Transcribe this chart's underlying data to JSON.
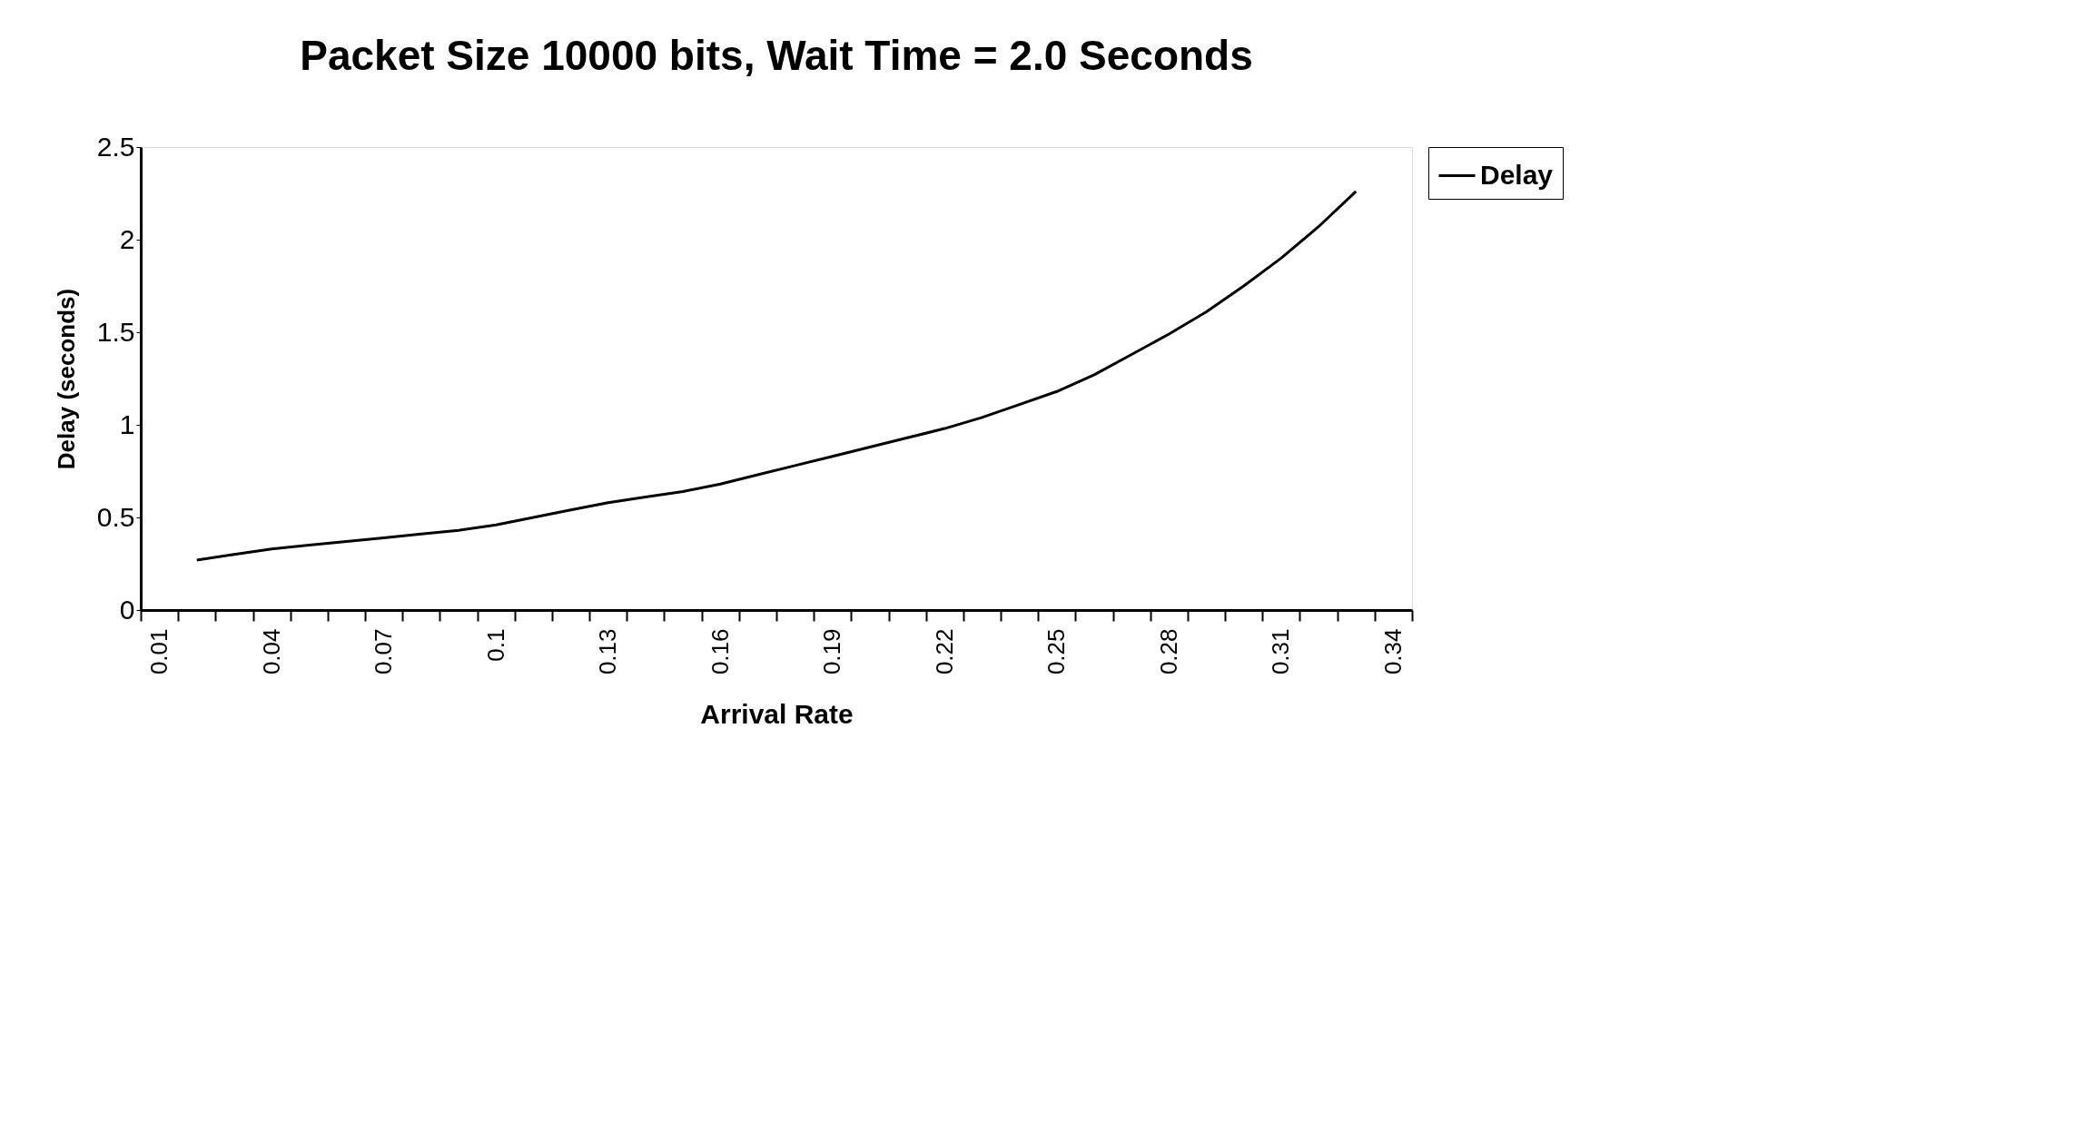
{
  "chart_data": {
    "type": "line",
    "title": "Packet Size 10000 bits, Wait Time = 2.0 Seconds",
    "xlabel": "Arrival Rate",
    "ylabel": "Delay (seconds)",
    "categories": [
      "0.01",
      null,
      null,
      "0.04",
      null,
      null,
      "0.07",
      null,
      null,
      "0.1",
      null,
      null,
      "0.13",
      null,
      null,
      "0.16",
      null,
      null,
      "0.19",
      null,
      null,
      "0.22",
      null,
      null,
      "0.25",
      null,
      null,
      "0.28",
      null,
      null,
      "0.31",
      null,
      null,
      "0.34"
    ],
    "series": [
      {
        "name": "Delay",
        "color": "#000000",
        "values": [
          null,
          0.27,
          0.3,
          0.33,
          0.35,
          0.37,
          0.39,
          0.41,
          0.43,
          0.46,
          0.5,
          0.54,
          0.58,
          0.61,
          0.64,
          0.68,
          0.73,
          0.78,
          0.83,
          0.88,
          0.93,
          0.98,
          1.04,
          1.11,
          1.18,
          1.27,
          1.38,
          1.49,
          1.61,
          1.75,
          1.9,
          2.07,
          2.26,
          null
        ]
      }
    ],
    "ylim": [
      0,
      2.5
    ],
    "yticks": [
      0,
      0.5,
      1,
      1.5,
      2,
      2.5
    ],
    "grid": false,
    "legend": "right",
    "marker": "none",
    "line_style": "solid"
  }
}
